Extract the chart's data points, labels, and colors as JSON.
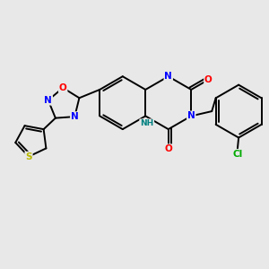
{
  "bg_color": "#e8e8e8",
  "bond_color": "#000000",
  "line_width": 1.4,
  "atom_colors": {
    "N": "#0000ff",
    "O": "#ff0000",
    "S": "#b8b800",
    "Cl": "#00aa00",
    "C": "#000000",
    "H": "#008080"
  },
  "font_size": 7.5
}
